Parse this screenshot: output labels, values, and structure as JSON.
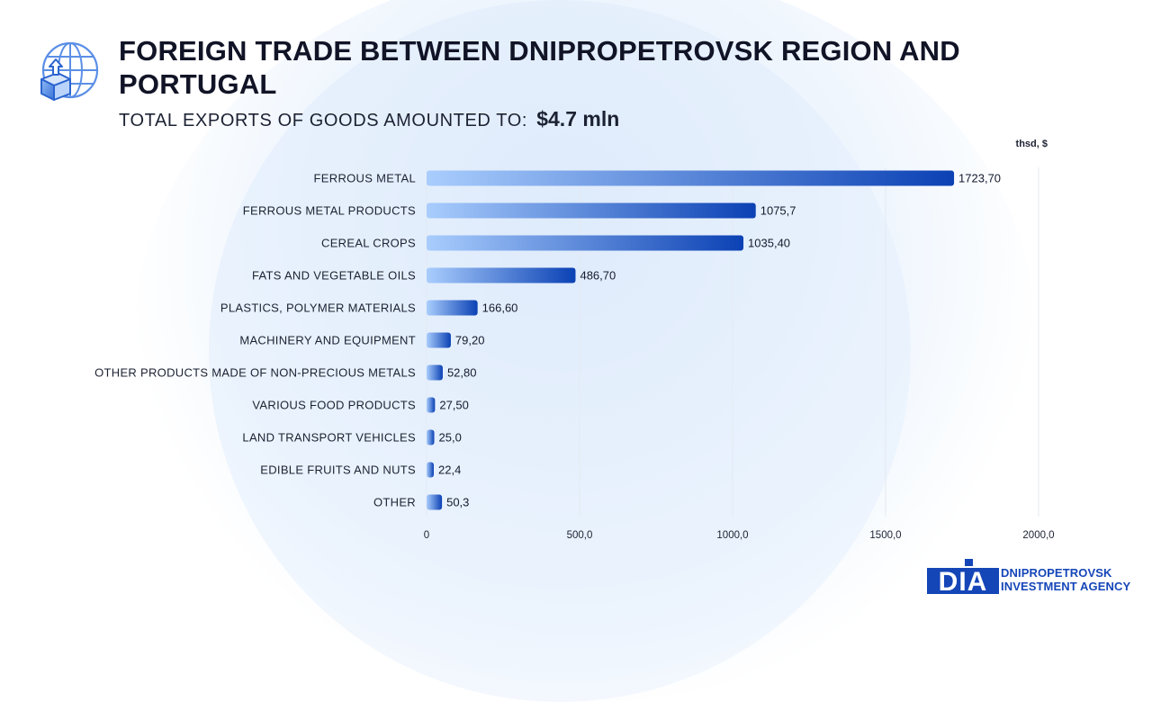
{
  "header": {
    "title": "FOREIGN TRADE BETWEEN DNIPROPETROVSK REGION AND PORTUGAL",
    "subtitle_label": "TOTAL EXPORTS OF GOODS AMOUNTED TO:",
    "subtitle_value": "$4.7 mln",
    "icon": "globe-export-box-icon"
  },
  "chart_data": {
    "type": "bar",
    "orientation": "horizontal",
    "unit_label": "thsd, $",
    "categories": [
      "FERROUS METAL",
      "FERROUS METAL PRODUCTS",
      "CEREAL CROPS",
      "FATS AND VEGETABLE OILS",
      "PLASTICS, POLYMER MATERIALS",
      "MACHINERY AND EQUIPMENT",
      "OTHER PRODUCTS MADE OF NON-PRECIOUS METALS",
      "VARIOUS FOOD PRODUCTS",
      "LAND TRANSPORT VEHICLES",
      "EDIBLE FRUITS AND NUTS",
      "OTHER"
    ],
    "values": [
      1723.7,
      1075.7,
      1035.4,
      486.7,
      166.6,
      79.2,
      52.8,
      27.5,
      25.0,
      22.4,
      50.3
    ],
    "data_labels": [
      "1723,70",
      "1075,7",
      "1035,40",
      "486,70",
      "166,60",
      "79,20",
      "52,80",
      "27,50",
      "25,0",
      "22,4",
      "50,3"
    ],
    "xlim": [
      0,
      2000
    ],
    "x_ticks": [
      0,
      500,
      1000,
      1500,
      2000
    ],
    "x_tick_labels": [
      "0",
      "500,0",
      "1000,0",
      "1500,0",
      "2000,0"
    ],
    "grid": "vertical",
    "legend": "none",
    "colors": {
      "bar_start": "#a9cdfd",
      "bar_end": "#0b41b4",
      "grid": "#e3e9f2"
    }
  },
  "brand": {
    "logo_text": "DIA",
    "name_line1": "DNIPROPETROVSK",
    "name_line2": "INVESTMENT AGENCY",
    "color": "#1546b8"
  }
}
